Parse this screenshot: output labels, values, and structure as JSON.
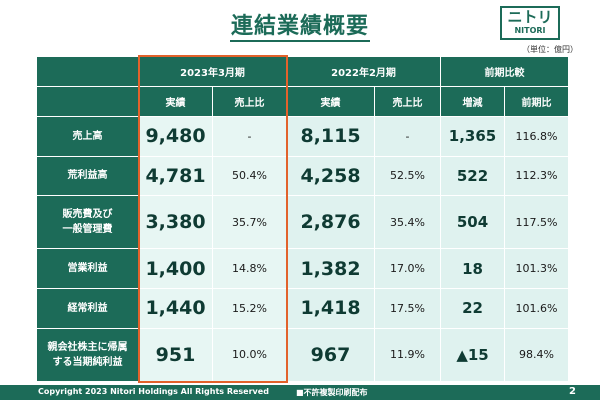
{
  "header": {
    "title": "連結業績概要",
    "logo_mark": "ニトリ",
    "logo_text": "NITORI",
    "unit": "（単位：億円）"
  },
  "table": {
    "group_headers": [
      "2023年3月期",
      "2022年2月期",
      "前期比較"
    ],
    "sub_headers": [
      "実績",
      "売上比",
      "実績",
      "売上比",
      "増減",
      "前期比"
    ],
    "rows": [
      {
        "label": [
          "売上高"
        ],
        "cur": "9,480",
        "cur_ratio": "-",
        "prev": "8,115",
        "prev_ratio": "-",
        "diff": "1,365",
        "yoy": "116.8%"
      },
      {
        "label": [
          "荒利益高"
        ],
        "cur": "4,781",
        "cur_ratio": "50.4%",
        "prev": "4,258",
        "prev_ratio": "52.5%",
        "diff": "522",
        "yoy": "112.3%"
      },
      {
        "label": [
          "販売費及び",
          "一般管理費"
        ],
        "cur": "3,380",
        "cur_ratio": "35.7%",
        "prev": "2,876",
        "prev_ratio": "35.4%",
        "diff": "504",
        "yoy": "117.5%"
      },
      {
        "label": [
          "営業利益"
        ],
        "cur": "1,400",
        "cur_ratio": "14.8%",
        "prev": "1,382",
        "prev_ratio": "17.0%",
        "diff": "18",
        "yoy": "101.3%"
      },
      {
        "label": [
          "経常利益"
        ],
        "cur": "1,440",
        "cur_ratio": "15.2%",
        "prev": "1,418",
        "prev_ratio": "17.5%",
        "diff": "22",
        "yoy": "101.6%"
      },
      {
        "label": [
          "親会社株主に帰属",
          "する当期純利益"
        ],
        "cur": "951",
        "cur_ratio": "10.0%",
        "prev": "967",
        "prev_ratio": "11.9%",
        "diff": "▲15",
        "yoy": "98.4%"
      }
    ]
  },
  "footer": {
    "copyright": "Copyright 2023 Nitori Holdings All Rights Reserved",
    "notice": "■不許複製印刷配布",
    "page_number": "2"
  },
  "colors": {
    "brand": "#1c6b58",
    "cell": "#dff2ef",
    "highlight": "#e2622b"
  }
}
